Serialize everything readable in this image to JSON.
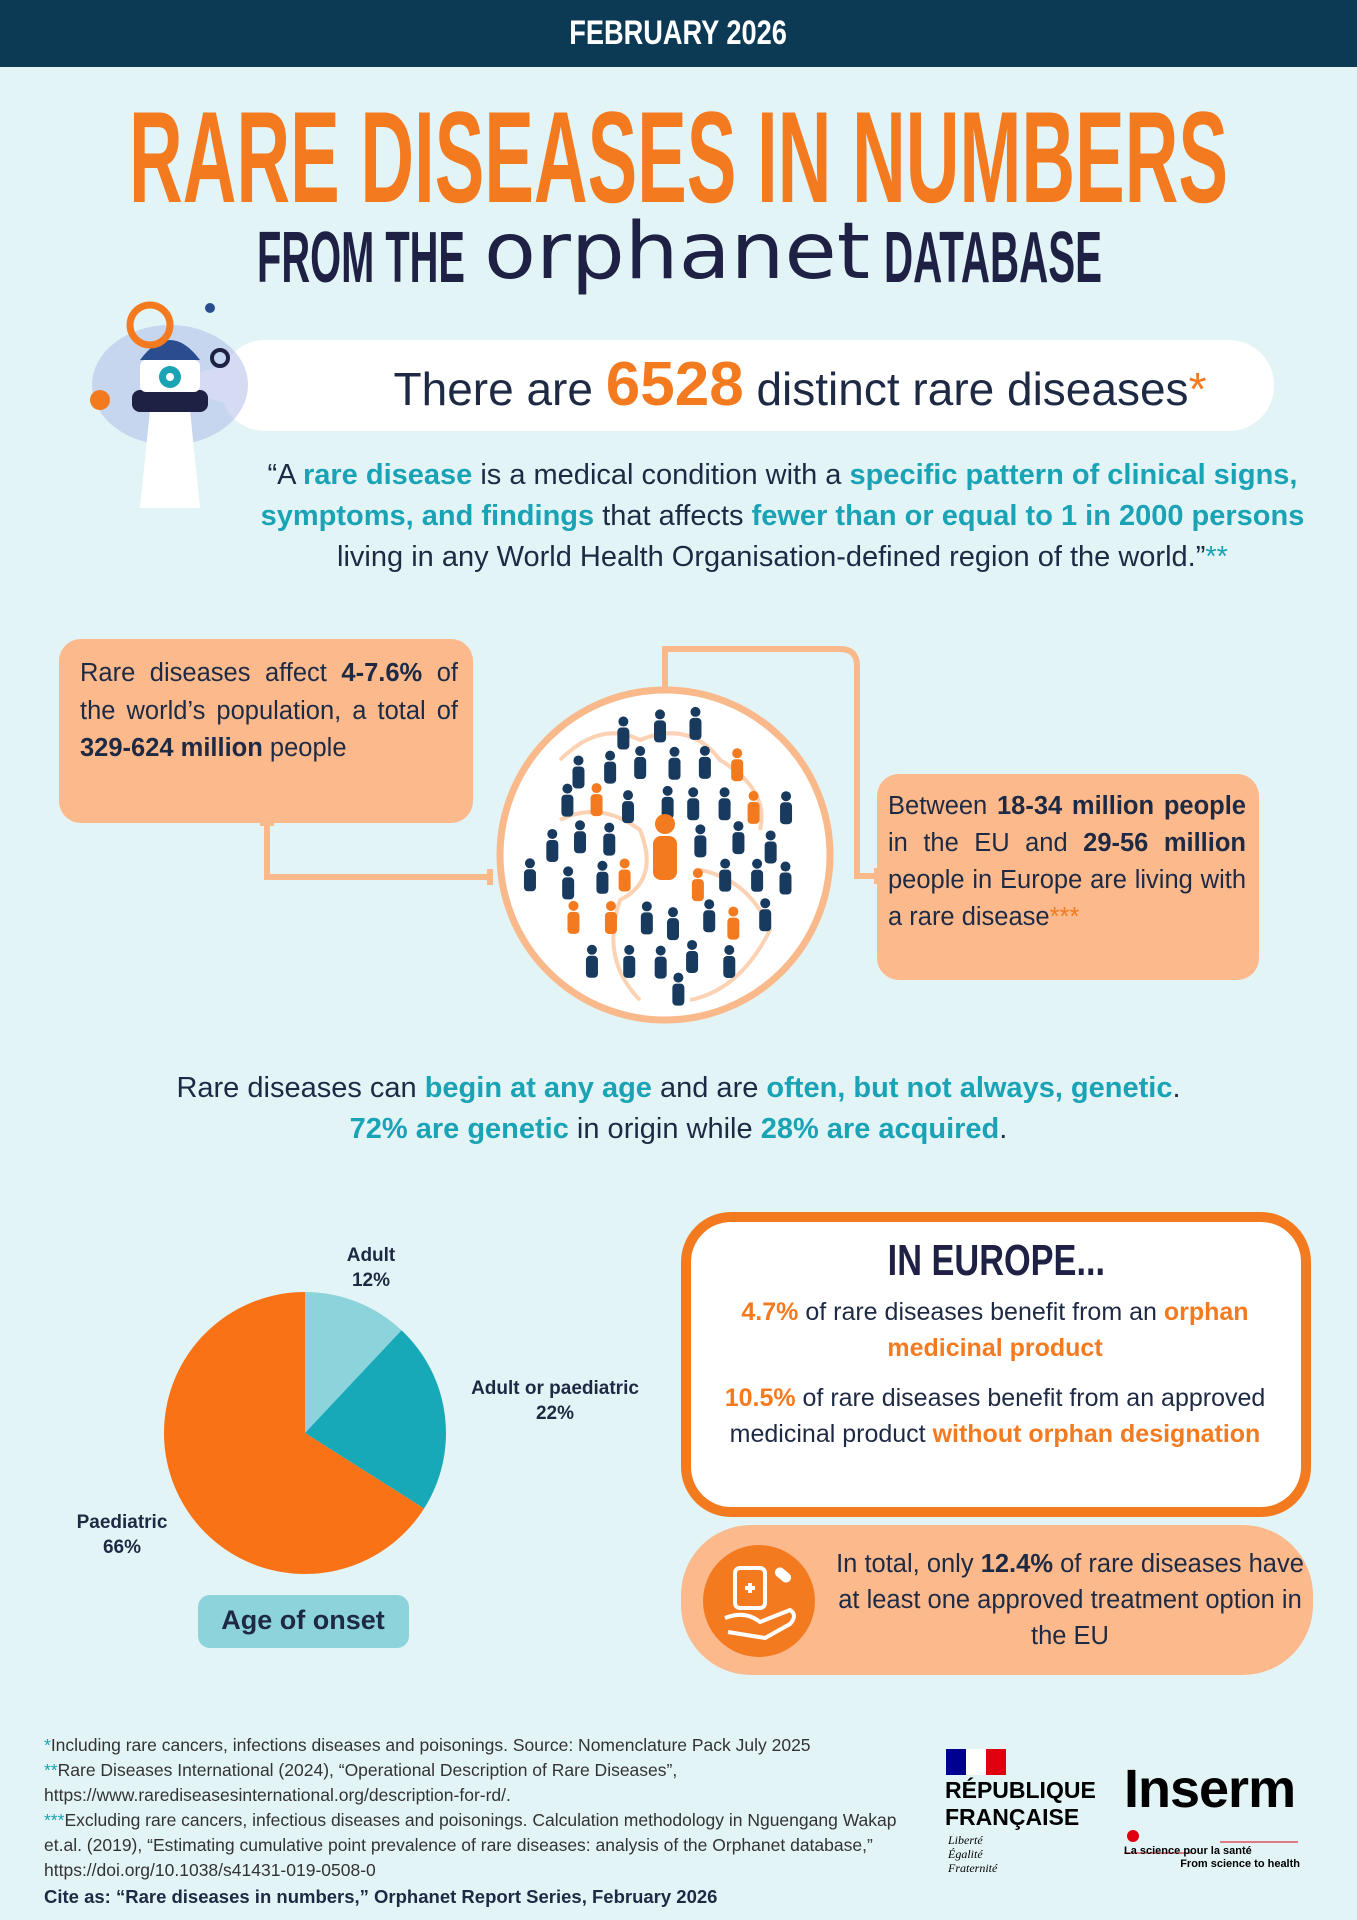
{
  "header": {
    "date": "FEBRUARY 2026"
  },
  "title": "RARE DISEASES IN NUMBERS",
  "subtitle": {
    "before": "FROM THE",
    "logo": "orphanet",
    "after": "DATABASE"
  },
  "banner": [
    "There are ",
    6528,
    " distinct rare diseases",
    "*"
  ],
  "definition": [
    "“A ",
    "rare disease",
    " is a medical condition with a ",
    "specific pattern of clinical signs, symptoms, and findings",
    " that affects ",
    "fewer than or equal to 1 in 2000 persons",
    " living in any World Health Organisation-defined region of the world.”",
    "**"
  ],
  "world_box": [
    "Rare diseases affect ",
    "4-7.6%",
    " of the world’s population, a total of ",
    "329-624 million",
    " people"
  ],
  "europe_box": [
    "Between ",
    "18-34 million people",
    " in the EU and ",
    "29-56 million",
    " people in Europe are living with a rare disease",
    "***"
  ],
  "genetic": [
    [
      "Rare diseases can ",
      "begin at any age",
      " and are ",
      "often, but not always, genetic",
      "."
    ],
    [
      "72% are genetic",
      " in origin while ",
      "28% are acquired",
      "."
    ]
  ],
  "chart_data": {
    "type": "pie",
    "title": "Age of onset",
    "categories": [
      "Adult",
      "Adult or paediatric",
      "Paediatric"
    ],
    "values": [
      12,
      22,
      66
    ],
    "value_labels": [
      "12%",
      "22%",
      "66%"
    ],
    "colors": [
      "#8dd3dc",
      "#17a9b8",
      "#f97316"
    ]
  },
  "in_europe": {
    "title": "IN EUROPE...",
    "lines": [
      [
        "4.7%",
        " of rare diseases benefit from an ",
        "orphan medicinal product"
      ],
      [
        "10.5%",
        " of rare diseases benefit from an approved medicinal product ",
        "without orphan designation"
      ]
    ]
  },
  "total": [
    "In total, only ",
    "12.4%",
    " of rare diseases have at least one approved treatment option in the EU"
  ],
  "footnotes": [
    {
      "marker": "*",
      "text": "Including rare cancers, infections diseases and poisonings. Source: Nomenclature Pack July 2025"
    },
    {
      "marker": "**",
      "text": "Rare Diseases International (2024), “Operational Description of Rare Diseases”, https://www.rarediseasesinternational.org/description-for-rd/."
    },
    {
      "marker": "***",
      "text": "Excluding rare cancers, infectious diseases and poisonings. Calculation methodology in Nguengang Wakap et.al. (2019), “Estimating cumulative point prevalence of rare diseases: analysis of the Orphanet database,” https://doi.org/10.1038/s41431-019-0508-0"
    }
  ],
  "cite": "Cite as: “Rare diseases in numbers,” Orphanet Report Series, February 2026",
  "logos": {
    "republique": [
      "RÉPUBLIQUE",
      "FRANÇAISE"
    ],
    "motto": [
      "Liberté",
      "Égalité",
      "Fraternité"
    ],
    "inserm": "Inserm",
    "inserm_tagline": [
      "La science pour la santé",
      "From science to health"
    ]
  }
}
